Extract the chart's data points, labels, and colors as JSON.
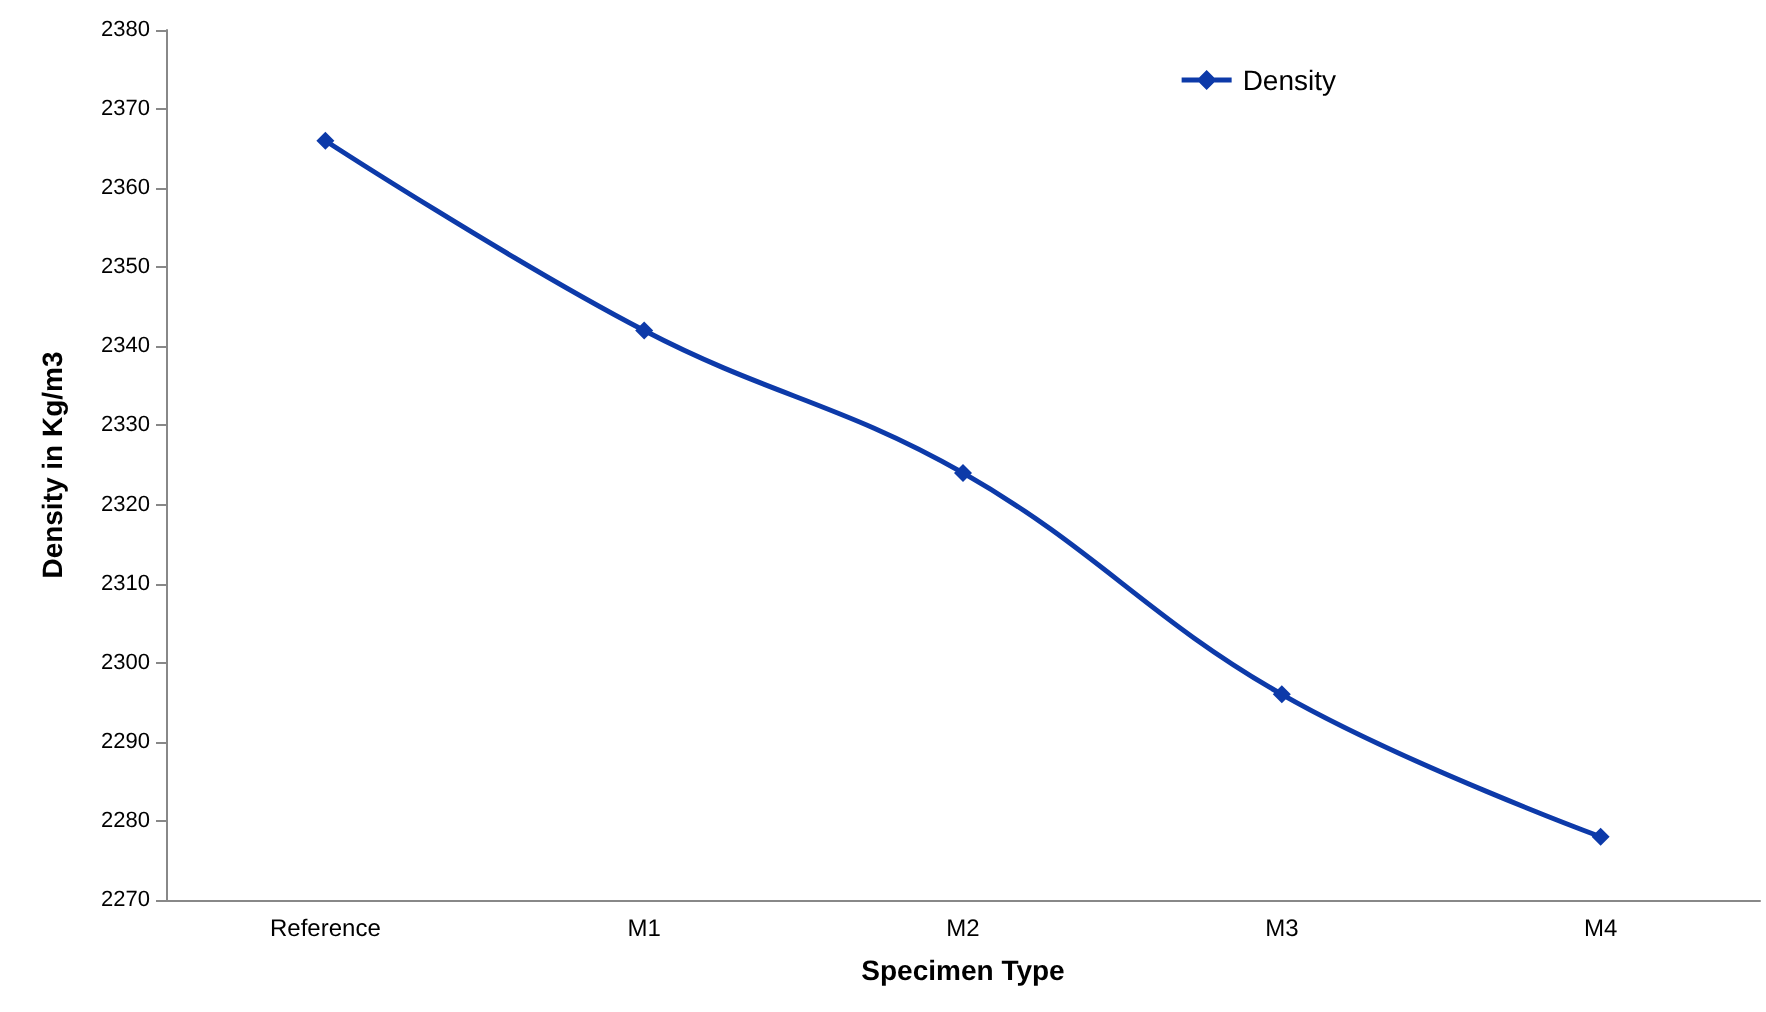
{
  "chart_data": {
    "type": "line",
    "xlabel": "Specimen Type",
    "ylabel": "Density in Kg/m3",
    "categories": [
      "Reference",
      "M1",
      "M2",
      "M3",
      "M4"
    ],
    "series": [
      {
        "name": "Density",
        "color": "#0d3aa9",
        "values": [
          2366,
          2342,
          2324,
          2296,
          2278
        ]
      }
    ],
    "ylim": [
      2270,
      2380
    ],
    "yticks": [
      2270,
      2280,
      2290,
      2300,
      2310,
      2320,
      2330,
      2340,
      2350,
      2360,
      2370,
      2380
    ],
    "grid": false,
    "legend": "top right",
    "marker": "diamond",
    "line_style": "solid"
  }
}
